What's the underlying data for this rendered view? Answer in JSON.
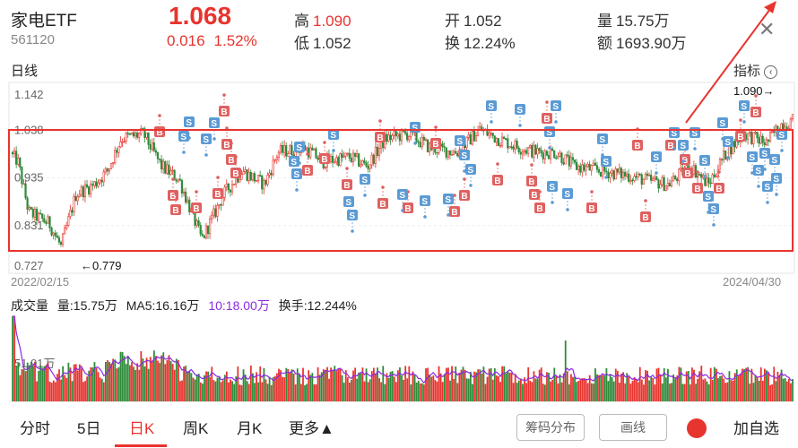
{
  "header": {
    "name": "家电ETF",
    "code": "561120",
    "price": "1.068",
    "change": "0.016",
    "change_pct": "1.52%",
    "high_label": "高",
    "high_value": "1.090",
    "low_label": "低",
    "low_value": "1.052",
    "open_label": "开",
    "open_value": "1.052",
    "turnover_label": "换",
    "turnover_value": "12.24%",
    "volume_label": "量",
    "volume_value": "15.75万",
    "amount_label": "额",
    "amount_value": "1693.90万"
  },
  "kline": {
    "title": "日线",
    "indicator_label": "指标",
    "y_ticks": [
      "1.142",
      "1.038",
      "0.935",
      "0.831",
      "0.727"
    ],
    "high_marker": "1.090→",
    "low_marker": "←0.779",
    "start_date": "2022/02/15",
    "end_date": "2024/04/30"
  },
  "volume": {
    "title": "成交量",
    "vol": "量:15.75万",
    "ma5": "MA5:16.16万",
    "time": "10:18.00万",
    "turnover": "换手:12.244%",
    "axis_label": "51.91万"
  },
  "tabs": [
    "分时",
    "5日",
    "日K",
    "周K",
    "月K",
    "更多▲"
  ],
  "buttons": {
    "chips": "筹码分布",
    "draw": "画线",
    "add": "加自选"
  },
  "colors": {
    "up": "#e8342e",
    "down": "#2e8b3a",
    "buy": "#e06060",
    "sell": "#5b9bd5",
    "annotation": "#e8342e"
  },
  "signals": {
    "buy": "B",
    "sell": "S"
  }
}
